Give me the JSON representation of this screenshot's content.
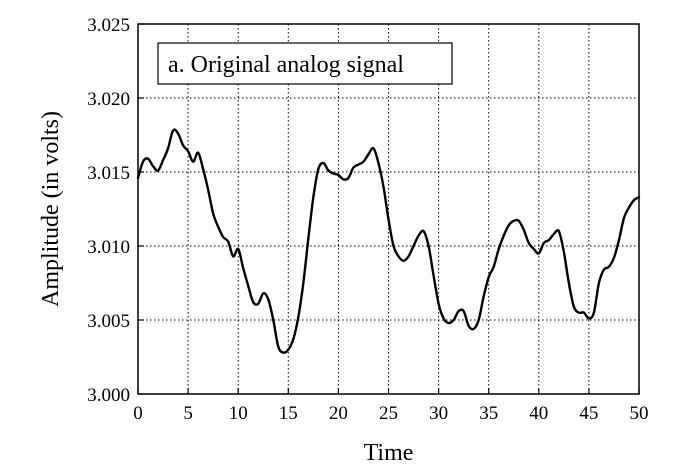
{
  "chart_data": {
    "type": "line",
    "title": "",
    "xlabel": "Time",
    "ylabel": "Amplitude (in volts)",
    "xlim": [
      0,
      50
    ],
    "ylim": [
      3.0,
      3.025
    ],
    "grid": true,
    "x_ticks": [
      0,
      5,
      10,
      15,
      20,
      25,
      30,
      35,
      40,
      45,
      50
    ],
    "y_ticks": [
      3.0,
      3.005,
      3.01,
      3.015,
      3.02,
      3.025
    ],
    "x_tick_labels": [
      "0",
      "5",
      "10",
      "15",
      "20",
      "25",
      "30",
      "35",
      "40",
      "45",
      "50"
    ],
    "y_tick_labels": [
      "3.000",
      "3.005",
      "3.010",
      "3.015",
      "3.020",
      "3.025"
    ],
    "legend": {
      "text": "a. Original analog signal",
      "placement": "top-left"
    },
    "series": [
      {
        "color": "#000000",
        "x": [
          0,
          0.5,
          1,
          1.5,
          2,
          2.5,
          3,
          3.5,
          4,
          4.5,
          5,
          5.5,
          6,
          6.5,
          7,
          7.5,
          8,
          8.5,
          9,
          9.5,
          10,
          10.5,
          11,
          11.5,
          12,
          12.5,
          13,
          13.5,
          14,
          14.5,
          15,
          15.5,
          16,
          16.5,
          17,
          17.5,
          18,
          18.5,
          19,
          19.5,
          20,
          20.5,
          21,
          21.5,
          22,
          22.5,
          23,
          23.5,
          24,
          24.5,
          25,
          25.5,
          26,
          26.5,
          27,
          27.5,
          28,
          28.5,
          29,
          29.5,
          30,
          30.5,
          31,
          31.5,
          32,
          32.5,
          33,
          33.5,
          34,
          34.5,
          35,
          35.5,
          36,
          36.5,
          37,
          37.5,
          38,
          38.5,
          39,
          39.5,
          40,
          40.5,
          41,
          41.5,
          42,
          42.5,
          43,
          43.5,
          44,
          44.5,
          45,
          45.5,
          46,
          46.5,
          47,
          47.5,
          48,
          48.5,
          49,
          49.5,
          50
        ],
        "y": [
          3.0146,
          3.0157,
          3.0159,
          3.0154,
          3.0151,
          3.0158,
          3.0166,
          3.0178,
          3.0176,
          3.0168,
          3.0164,
          3.0157,
          3.0163,
          3.0152,
          3.0138,
          3.0122,
          3.0113,
          3.0106,
          3.0103,
          3.0093,
          3.0098,
          3.0085,
          3.0073,
          3.0062,
          3.0061,
          3.0068,
          3.0064,
          3.005,
          3.0032,
          3.0028,
          3.003,
          3.0037,
          3.0052,
          3.0075,
          3.0105,
          3.0133,
          3.0152,
          3.0156,
          3.0151,
          3.0149,
          3.0148,
          3.0145,
          3.0146,
          3.0153,
          3.0155,
          3.0157,
          3.0162,
          3.0166,
          3.0156,
          3.014,
          3.0118,
          3.01,
          3.0093,
          3.009,
          3.0093,
          3.01,
          3.0107,
          3.011,
          3.01,
          3.008,
          3.0061,
          3.0051,
          3.0048,
          3.005,
          3.0056,
          3.0056,
          3.0046,
          3.0044,
          3.005,
          3.0066,
          3.0079,
          3.0086,
          3.0098,
          3.0107,
          3.0114,
          3.0117,
          3.0117,
          3.0111,
          3.0102,
          3.0098,
          3.0095,
          3.0102,
          3.0104,
          3.0108,
          3.011,
          3.0096,
          3.0075,
          3.0059,
          3.0055,
          3.0055,
          3.0051,
          3.0055,
          3.0075,
          3.0084,
          3.0086,
          3.0092,
          3.0104,
          3.0119,
          3.0126,
          3.0131,
          3.0133
        ]
      }
    ]
  }
}
